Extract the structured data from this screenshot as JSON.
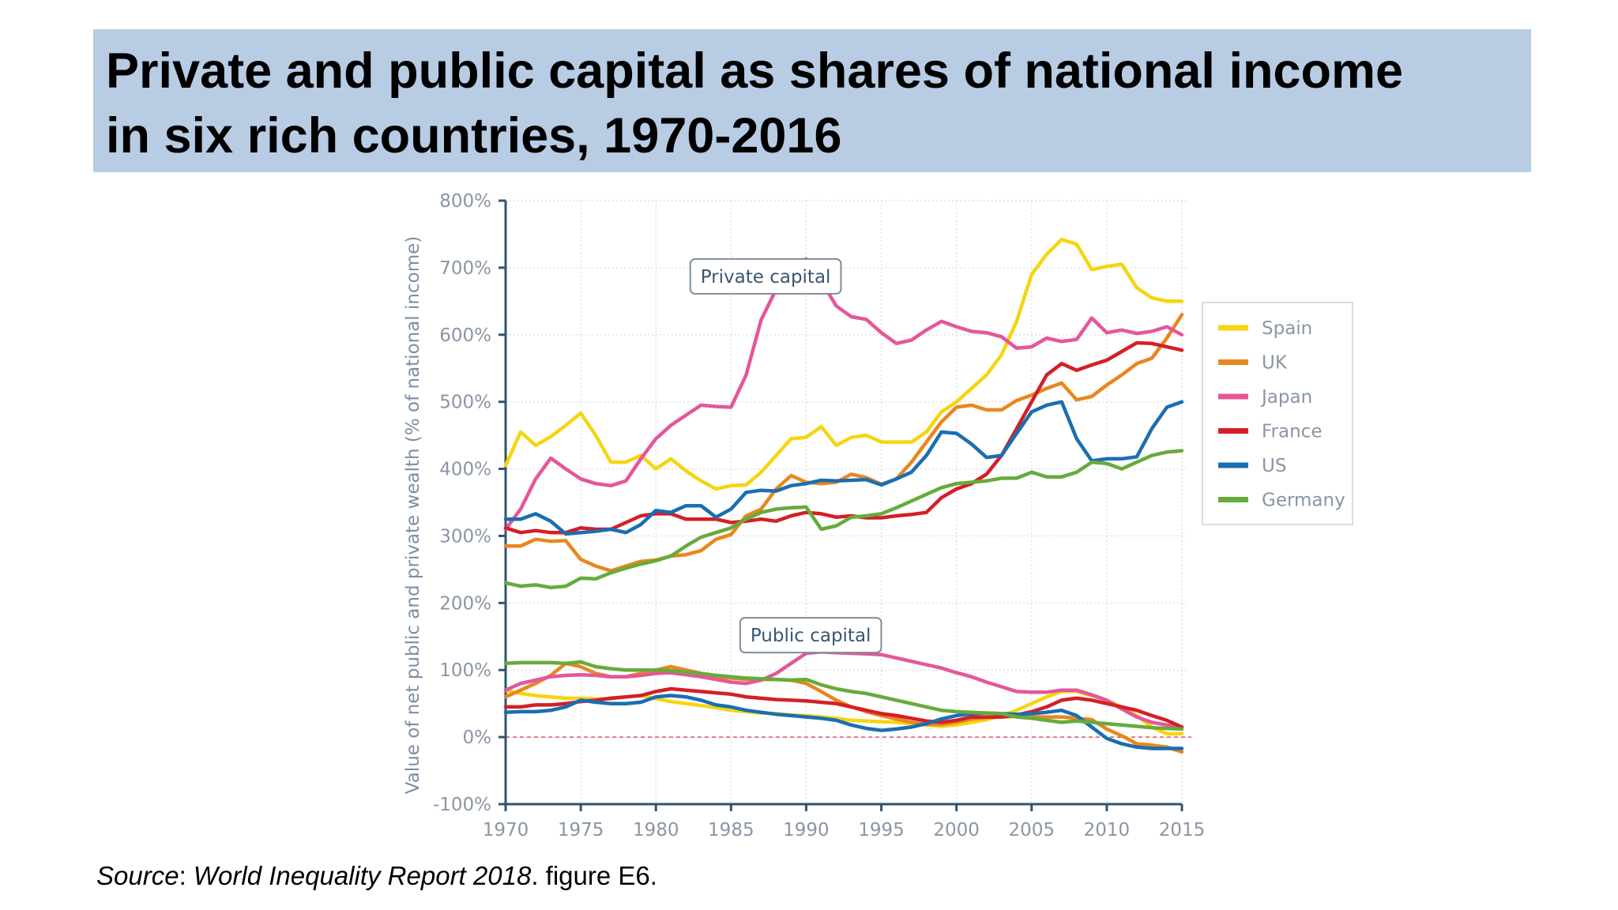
{
  "title_lines": [
    "Private and public capital as shares of national income",
    "in six rich countries, 1970-2016"
  ],
  "source": {
    "label": "Source",
    "sep": ": ",
    "publication": "World Inequality Report 2018",
    "rest": ". figure E6."
  },
  "chart_data": {
    "type": "line",
    "title": "",
    "ylabel": "Value of net public and private wealth (% of national income)",
    "xlabel": "",
    "xlim": [
      1970,
      2015
    ],
    "ylim": [
      -100,
      800
    ],
    "x_ticks": [
      1970,
      1975,
      1980,
      1985,
      1990,
      1995,
      2000,
      2005,
      2010,
      2015
    ],
    "y_ticks": [
      -100,
      0,
      100,
      200,
      300,
      400,
      500,
      600,
      700,
      800
    ],
    "y_tick_labels": [
      "-100%",
      "0%",
      "100%",
      "200%",
      "300%",
      "400%",
      "500%",
      "600%",
      "700%",
      "800%"
    ],
    "grid": true,
    "zero_line": true,
    "legend_position": "right",
    "annotations": [
      {
        "text": "Private capital",
        "x": 1987.3,
        "y": 687
      },
      {
        "text": "Public capital",
        "x": 1990.3,
        "y": 152
      }
    ],
    "years": [
      1970,
      1971,
      1972,
      1973,
      1974,
      1975,
      1976,
      1977,
      1978,
      1979,
      1980,
      1981,
      1982,
      1983,
      1984,
      1985,
      1986,
      1987,
      1988,
      1989,
      1990,
      1991,
      1992,
      1993,
      1994,
      1995,
      1996,
      1997,
      1998,
      1999,
      2000,
      2001,
      2002,
      2003,
      2004,
      2005,
      2006,
      2007,
      2008,
      2009,
      2010,
      2011,
      2012,
      2013,
      2014,
      2015
    ],
    "series": [
      {
        "name": "Spain",
        "color": "#f5d50f",
        "group": "private",
        "values": [
          405,
          455,
          435,
          448,
          465,
          483,
          450,
          410,
          410,
          420,
          400,
          415,
          397,
          382,
          370,
          375,
          376,
          395,
          420,
          445,
          447,
          463,
          435,
          447,
          450,
          440,
          440,
          440,
          455,
          485,
          500,
          520,
          540,
          570,
          620,
          690,
          720,
          742,
          735,
          697,
          702,
          705,
          670,
          655,
          650,
          650
        ]
      },
      {
        "name": "UK",
        "color": "#e8871e",
        "group": "private",
        "values": [
          285,
          285,
          295,
          292,
          293,
          265,
          255,
          248,
          255,
          262,
          264,
          270,
          272,
          278,
          295,
          302,
          330,
          340,
          370,
          390,
          380,
          378,
          380,
          392,
          387,
          377,
          385,
          410,
          440,
          470,
          492,
          495,
          488,
          488,
          502,
          510,
          520,
          528,
          503,
          508,
          525,
          540,
          557,
          565,
          595,
          630
        ]
      },
      {
        "name": "Japan",
        "color": "#e5569a",
        "group": "private",
        "values": [
          310,
          340,
          385,
          416,
          400,
          385,
          378,
          375,
          382,
          415,
          445,
          465,
          480,
          495,
          493,
          492,
          540,
          622,
          668,
          705,
          713,
          680,
          643,
          627,
          623,
          603,
          587,
          592,
          607,
          620,
          612,
          605,
          603,
          597,
          580,
          582,
          595,
          590,
          593,
          625,
          603,
          607,
          602,
          605,
          612,
          600
        ]
      },
      {
        "name": "France",
        "color": "#d41f26",
        "group": "private",
        "values": [
          312,
          305,
          308,
          305,
          305,
          312,
          310,
          310,
          320,
          330,
          333,
          333,
          325,
          325,
          325,
          320,
          322,
          325,
          322,
          330,
          335,
          333,
          328,
          330,
          327,
          327,
          330,
          332,
          335,
          357,
          370,
          378,
          392,
          420,
          460,
          500,
          540,
          557,
          547,
          555,
          562,
          575,
          588,
          587,
          582,
          577
        ]
      },
      {
        "name": "US",
        "color": "#1a6eb2",
        "group": "private",
        "values": [
          325,
          325,
          333,
          322,
          303,
          305,
          307,
          310,
          305,
          317,
          338,
          335,
          345,
          345,
          328,
          340,
          365,
          368,
          367,
          375,
          378,
          383,
          382,
          383,
          384,
          376,
          385,
          395,
          420,
          455,
          453,
          437,
          417,
          420,
          453,
          485,
          495,
          500,
          445,
          412,
          415,
          415,
          418,
          460,
          492,
          500
        ]
      },
      {
        "name": "Germany",
        "color": "#66ab3b",
        "group": "private",
        "values": [
          230,
          225,
          227,
          223,
          225,
          237,
          236,
          245,
          252,
          258,
          263,
          270,
          285,
          298,
          305,
          312,
          325,
          335,
          340,
          342,
          343,
          310,
          315,
          328,
          330,
          333,
          342,
          352,
          362,
          372,
          378,
          380,
          382,
          386,
          386,
          395,
          388,
          388,
          395,
          410,
          408,
          400,
          410,
          420,
          425,
          427
        ]
      },
      {
        "name": "Spain",
        "color": "#f5d50f",
        "group": "public",
        "values": [
          70,
          65,
          62,
          60,
          58,
          58,
          57,
          57,
          60,
          62,
          57,
          53,
          50,
          47,
          44,
          40,
          38,
          36,
          35,
          33,
          32,
          30,
          28,
          25,
          24,
          23,
          22,
          20,
          18,
          16,
          18,
          22,
          26,
          32,
          40,
          50,
          60,
          68,
          68,
          62,
          55,
          45,
          32,
          15,
          5,
          5
        ]
      },
      {
        "name": "UK",
        "color": "#e8871e",
        "group": "public",
        "values": [
          60,
          70,
          80,
          92,
          110,
          105,
          95,
          90,
          90,
          95,
          100,
          105,
          100,
          95,
          90,
          88,
          86,
          86,
          86,
          85,
          80,
          68,
          55,
          45,
          38,
          32,
          27,
          22,
          19,
          19,
          22,
          27,
          29,
          30,
          31,
          30,
          30,
          30,
          28,
          26,
          12,
          2,
          -10,
          -12,
          -15,
          -22
        ]
      },
      {
        "name": "Japan",
        "color": "#e5569a",
        "group": "public",
        "values": [
          70,
          80,
          85,
          90,
          92,
          93,
          92,
          90,
          90,
          92,
          95,
          96,
          93,
          90,
          86,
          82,
          80,
          85,
          95,
          110,
          125,
          127,
          126,
          125,
          124,
          123,
          118,
          113,
          108,
          103,
          96,
          90,
          82,
          75,
          68,
          67,
          67,
          70,
          70,
          63,
          55,
          42,
          30,
          22,
          18,
          14
        ]
      },
      {
        "name": "France",
        "color": "#d41f26",
        "group": "public",
        "values": [
          45,
          45,
          48,
          48,
          50,
          53,
          55,
          58,
          60,
          62,
          68,
          72,
          70,
          68,
          66,
          64,
          60,
          58,
          56,
          55,
          54,
          52,
          50,
          45,
          40,
          35,
          32,
          28,
          24,
          22,
          25,
          30,
          30,
          30,
          33,
          38,
          45,
          55,
          58,
          55,
          50,
          45,
          40,
          32,
          25,
          15
        ]
      },
      {
        "name": "US",
        "color": "#1a6eb2",
        "group": "public",
        "values": [
          37,
          38,
          38,
          40,
          45,
          55,
          52,
          50,
          50,
          52,
          60,
          62,
          60,
          55,
          48,
          45,
          40,
          37,
          34,
          32,
          30,
          28,
          25,
          18,
          13,
          10,
          12,
          15,
          20,
          27,
          32,
          35,
          36,
          35,
          34,
          35,
          37,
          40,
          32,
          15,
          -2,
          -10,
          -15,
          -17,
          -17,
          -17
        ]
      },
      {
        "name": "Germany",
        "color": "#66ab3b",
        "group": "public",
        "values": [
          110,
          111,
          111,
          111,
          110,
          112,
          105,
          102,
          100,
          100,
          100,
          99,
          97,
          95,
          92,
          90,
          88,
          87,
          86,
          85,
          86,
          78,
          72,
          68,
          65,
          60,
          55,
          50,
          45,
          40,
          38,
          37,
          36,
          35,
          30,
          28,
          25,
          22,
          24,
          22,
          20,
          18,
          16,
          14,
          13,
          12
        ]
      }
    ],
    "legend": [
      "Spain",
      "UK",
      "Japan",
      "France",
      "US",
      "Germany"
    ]
  }
}
